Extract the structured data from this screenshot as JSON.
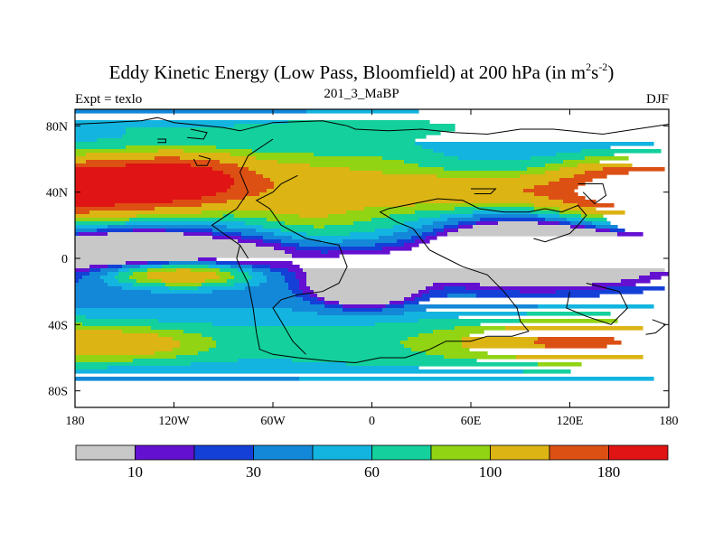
{
  "title": {
    "main": "Eddy Kinetic Energy (Low Pass, Bloomfield) at 200 hPa (in m",
    "sup1": "2",
    "mid": "s",
    "sup2": "-2",
    "end": ")"
  },
  "subtitle": "201_3_MaBP",
  "left_label": "Expt = texlo",
  "right_label": "DJF",
  "chart_data": {
    "type": "heatmap",
    "projection": "cylindrical-equidistant",
    "variable": "Eddy Kinetic Energy",
    "units": "m2 s-2",
    "season": "DJF",
    "level": "200 hPa",
    "xlim": [
      -180,
      180
    ],
    "ylim": [
      -90,
      90
    ],
    "x_ticks": [
      {
        "value": -180,
        "label": "180"
      },
      {
        "value": -120,
        "label": "120W"
      },
      {
        "value": -60,
        "label": "60W"
      },
      {
        "value": 0,
        "label": "0"
      },
      {
        "value": 60,
        "label": "60E"
      },
      {
        "value": 120,
        "label": "120E"
      },
      {
        "value": 180,
        "label": "180"
      }
    ],
    "y_ticks": [
      {
        "value": 80,
        "label": "80N"
      },
      {
        "value": 40,
        "label": "40N"
      },
      {
        "value": 0,
        "label": "0"
      },
      {
        "value": -40,
        "label": "40S"
      },
      {
        "value": -80,
        "label": "80S"
      }
    ],
    "colorbar": {
      "colors": [
        "#c8c8c8",
        "#6410d0",
        "#1440d8",
        "#1488d8",
        "#14b4e0",
        "#14d09c",
        "#90d414",
        "#dcb414",
        "#dc5014",
        "#e01414"
      ],
      "boundaries": [
        0,
        10,
        20,
        30,
        45,
        60,
        80,
        100,
        140,
        180,
        240
      ],
      "labels": [
        {
          "boundary_index": 1,
          "label": "10"
        },
        {
          "boundary_index": 3,
          "label": "30"
        },
        {
          "boundary_index": 5,
          "label": "60"
        },
        {
          "boundary_index": 7,
          "label": "100"
        },
        {
          "boundary_index": 9,
          "label": "180"
        }
      ]
    },
    "field_blobs": [
      {
        "lon": -140,
        "lat": 45,
        "slon": 38,
        "slat": 12,
        "amp": 150
      },
      {
        "lon": -100,
        "lat": 48,
        "slon": 30,
        "slat": 12,
        "amp": 70
      },
      {
        "lon": -45,
        "lat": 30,
        "slon": 25,
        "slat": 22,
        "amp": 40
      },
      {
        "lon": 0,
        "lat": 40,
        "slon": 35,
        "slat": 25,
        "amp": 40
      },
      {
        "lon": 65,
        "lat": 40,
        "slon": 35,
        "slat": 7,
        "amp": 70
      },
      {
        "lon": 155,
        "lat": 40,
        "slon": 35,
        "slat": 12,
        "amp": 150
      },
      {
        "lon": -115,
        "lat": -10,
        "slon": 30,
        "slat": 5,
        "amp": 110
      },
      {
        "lon": -5,
        "lat": -15,
        "slon": 20,
        "slat": 9,
        "amp": -105
      },
      {
        "lon": 100,
        "lat": 5,
        "slon": 40,
        "slat": 13,
        "amp": -95
      },
      {
        "lon": -140,
        "lat": 8,
        "slon": 30,
        "slat": 8,
        "amp": -50
      },
      {
        "lon": -60,
        "lat": 5,
        "slon": 25,
        "slat": 10,
        "amp": -25
      },
      {
        "lon": 120,
        "lat": -50,
        "slon": 45,
        "slat": 9,
        "amp": 80
      },
      {
        "lon": -150,
        "lat": -52,
        "slon": 35,
        "slat": 7,
        "amp": 60
      },
      {
        "lon": 30,
        "lat": -55,
        "slon": 70,
        "slat": 12,
        "amp": 15
      }
    ],
    "coastline": [
      [
        [
          -180,
          81
        ],
        [
          -160,
          82
        ],
        [
          -140,
          83
        ],
        [
          -130,
          85
        ],
        [
          -120,
          82
        ],
        [
          -90,
          79
        ],
        [
          -80,
          77
        ],
        [
          -60,
          82
        ],
        [
          -30,
          83
        ],
        [
          -15,
          80
        ],
        [
          -10,
          78
        ],
        [
          10,
          77
        ],
        [
          30,
          78
        ],
        [
          50,
          76
        ],
        [
          70,
          75
        ],
        [
          90,
          78
        ],
        [
          110,
          78
        ],
        [
          130,
          76
        ],
        [
          140,
          75
        ],
        [
          160,
          78
        ],
        [
          180,
          81
        ]
      ],
      [
        [
          -60,
          72
        ],
        [
          -75,
          62
        ],
        [
          -80,
          52
        ],
        [
          -75,
          40
        ],
        [
          -82,
          30
        ],
        [
          -97,
          20
        ],
        [
          -90,
          15
        ],
        [
          -80,
          8
        ],
        [
          -82,
          0
        ],
        [
          -80,
          -5
        ],
        [
          -75,
          -15
        ],
        [
          -72,
          -30
        ],
        [
          -70,
          -45
        ],
        [
          -68,
          -55
        ],
        [
          -60,
          -58
        ],
        [
          -45,
          -60
        ],
        [
          -25,
          -62
        ],
        [
          -10,
          -63
        ],
        [
          5,
          -60
        ],
        [
          20,
          -60
        ],
        [
          35,
          -55
        ],
        [
          45,
          -50
        ],
        [
          60,
          -50
        ],
        [
          70,
          -47
        ],
        [
          85,
          -47
        ],
        [
          95,
          -44
        ],
        [
          90,
          -38
        ],
        [
          88,
          -30
        ],
        [
          80,
          -20
        ],
        [
          70,
          -10
        ],
        [
          55,
          -5
        ],
        [
          45,
          0
        ],
        [
          35,
          5
        ],
        [
          25,
          18
        ],
        [
          15,
          22
        ],
        [
          5,
          28
        ],
        [
          10,
          30
        ],
        [
          25,
          33
        ],
        [
          40,
          36
        ],
        [
          55,
          35
        ],
        [
          65,
          30
        ],
        [
          80,
          28
        ],
        [
          95,
          28
        ],
        [
          105,
          30
        ],
        [
          115,
          28
        ],
        [
          125,
          32
        ],
        [
          130,
          26
        ],
        [
          125,
          20
        ],
        [
          120,
          15
        ],
        [
          105,
          10
        ],
        [
          98,
          12
        ]
      ],
      [
        [
          -45,
          50
        ],
        [
          -55,
          45
        ],
        [
          -60,
          40
        ],
        [
          -70,
          35
        ],
        [
          -62,
          30
        ],
        [
          -55,
          20
        ],
        [
          -40,
          12
        ],
        [
          -20,
          8
        ],
        [
          -15,
          -5
        ],
        [
          -20,
          -15
        ],
        [
          -30,
          -20
        ],
        [
          -45,
          -22
        ],
        [
          -55,
          -25
        ],
        [
          -60,
          -30
        ],
        [
          -55,
          -38
        ],
        [
          -48,
          -50
        ],
        [
          -40,
          -58
        ]
      ],
      [
        [
          -105,
          62
        ],
        [
          -98,
          60
        ],
        [
          -100,
          56
        ],
        [
          -106,
          56
        ],
        [
          -108,
          60
        ]
      ],
      [
        [
          -110,
          78
        ],
        [
          -100,
          76
        ],
        [
          -102,
          72
        ],
        [
          -112,
          73
        ]
      ],
      [
        [
          60,
          42
        ],
        [
          75,
          42
        ],
        [
          72,
          39
        ],
        [
          62,
          39
        ]
      ],
      [
        [
          125,
          45
        ],
        [
          140,
          45
        ],
        [
          142,
          38
        ],
        [
          135,
          33
        ],
        [
          128,
          40
        ]
      ],
      [
        [
          130,
          -15
        ],
        [
          150,
          -20
        ],
        [
          155,
          -30
        ],
        [
          145,
          -40
        ],
        [
          130,
          -35
        ],
        [
          118,
          -30
        ],
        [
          120,
          -20
        ]
      ],
      [
        [
          170,
          -37
        ],
        [
          178,
          -40
        ],
        [
          172,
          -45
        ],
        [
          166,
          -46
        ]
      ],
      [
        [
          -80,
          8
        ],
        [
          -75,
          0
        ]
      ],
      [
        [
          -130,
          72
        ],
        [
          -125,
          72
        ],
        [
          -125,
          70
        ],
        [
          -130,
          70
        ]
      ]
    ]
  }
}
